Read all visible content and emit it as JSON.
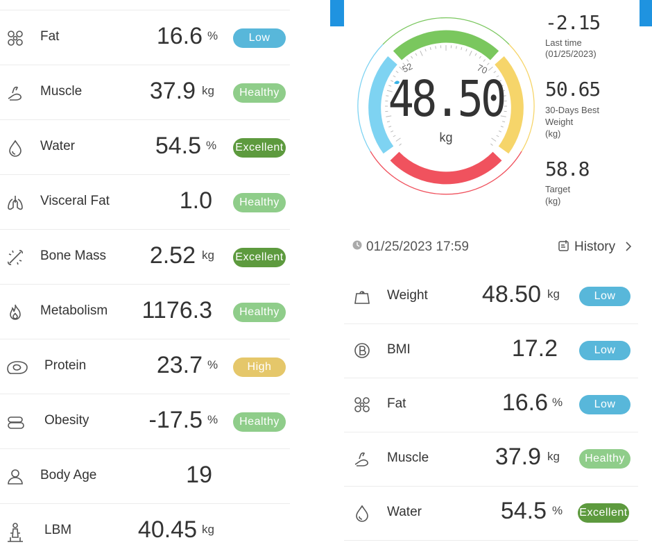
{
  "left_metrics": [
    {
      "name": "Fat",
      "value": "16.6",
      "unit": "%",
      "badge": "Low",
      "status": "low",
      "icon": "fat-icon"
    },
    {
      "name": "Muscle",
      "value": "37.9",
      "unit": "kg",
      "badge": "Healthy",
      "status": "healthy",
      "icon": "muscle-icon"
    },
    {
      "name": "Water",
      "value": "54.5",
      "unit": "%",
      "badge": "Excellent",
      "status": "excellent",
      "icon": "water-drop-icon"
    },
    {
      "name": "Visceral Fat",
      "value": "1.0",
      "unit": "",
      "badge": "Healthy",
      "status": "healthy",
      "icon": "lungs-icon"
    },
    {
      "name": "Bone Mass",
      "value": "2.52",
      "unit": "kg",
      "badge": "Excellent",
      "status": "excellent",
      "icon": "bone-icon"
    },
    {
      "name": "Metabolism",
      "value": "1176.3",
      "unit": "",
      "badge": "Healthy",
      "status": "healthy",
      "icon": "flame-icon"
    },
    {
      "name": "Protein",
      "value": "23.7",
      "unit": "%",
      "badge": "High",
      "status": "high",
      "icon": "protein-icon"
    },
    {
      "name": "Obesity",
      "value": "-17.5",
      "unit": "%",
      "badge": "Healthy",
      "status": "healthy",
      "icon": "obesity-icon"
    },
    {
      "name": "Body Age",
      "value": "19",
      "unit": "",
      "badge": "",
      "status": "",
      "icon": "person-icon"
    },
    {
      "name": "LBM",
      "value": "40.45",
      "unit": "kg",
      "badge": "",
      "status": "",
      "icon": "lbm-icon"
    }
  ],
  "gauge": {
    "value": "48.50",
    "unit": "kg",
    "tick_low": "52",
    "tick_high": "70"
  },
  "side_stats": {
    "last_change": "-2.15",
    "last_label": "Last time",
    "last_date": "(01/25/2023)",
    "best_value": "50.65",
    "best_label_1": "30-Days Best",
    "best_label_2": "Weight",
    "best_label_3": "(kg)",
    "target_value": "58.8",
    "target_label": "Target",
    "target_unit": "(kg)"
  },
  "measurement": {
    "datetime": "01/25/2023 17:59",
    "history_label": "History"
  },
  "right_metrics": [
    {
      "name": "Weight",
      "value": "48.50",
      "unit": "kg",
      "badge": "Low",
      "status": "low",
      "icon": "weight-icon"
    },
    {
      "name": "BMI",
      "value": "17.2",
      "unit": "",
      "badge": "Low",
      "status": "low",
      "icon": "bmi-icon"
    },
    {
      "name": "Fat",
      "value": "16.6",
      "unit": "%",
      "badge": "Low",
      "status": "low",
      "icon": "fat-icon"
    },
    {
      "name": "Muscle",
      "value": "37.9",
      "unit": "kg",
      "badge": "Healthy",
      "status": "healthy",
      "icon": "muscle-icon"
    },
    {
      "name": "Water",
      "value": "54.5",
      "unit": "%",
      "badge": "Excellent",
      "status": "excellent",
      "icon": "water-drop-icon"
    }
  ],
  "colors": {
    "low": "#58b7da",
    "healthy": "#8fcd8a",
    "excellent": "#5d9a3e",
    "high": "#e5c76a",
    "gauge_green": "#7ac75e",
    "gauge_yellow": "#f6d56a",
    "gauge_red": "#f0525e",
    "gauge_blue": "#7ed3f2",
    "accent_blue": "#1f93e0"
  }
}
